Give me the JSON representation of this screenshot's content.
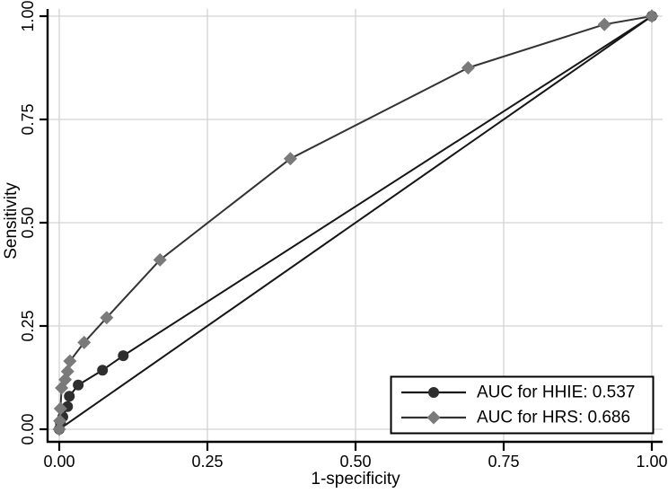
{
  "figure": {
    "background_color": "#ffffff",
    "axis_color": "#000000",
    "grid_color": "#d3d3d3",
    "legend_border_color": "#000000",
    "legend_fill_color": "#ffffff"
  },
  "chart_data": {
    "type": "line",
    "description": "ROC curve comparison",
    "title": "",
    "xlabel": "1-specificity",
    "ylabel": "Sensitivity",
    "xlim": [
      0,
      1
    ],
    "ylim": [
      0,
      1
    ],
    "xtick_values": [
      0,
      0.25,
      0.5,
      0.75,
      1.0
    ],
    "xtick_labels": [
      "0.00",
      "0.25",
      "0.50",
      "0.75",
      "1.00"
    ],
    "ytick_values": [
      0,
      0.25,
      0.5,
      0.75,
      1.0
    ],
    "ytick_labels": [
      "0.00",
      "0.25",
      "0.50",
      "0.75",
      "1.00"
    ],
    "grid": true,
    "legend_position": "bottom-right",
    "series": [
      {
        "name": "AUC for HHIE: 0.537",
        "auc": 0.537,
        "marker": "circle",
        "marker_color": "#2e2e2e",
        "line_color": "#161616",
        "points": [
          [
            0,
            0
          ],
          [
            0.002,
            0.015
          ],
          [
            0.006,
            0.03
          ],
          [
            0.014,
            0.055
          ],
          [
            0.017,
            0.08
          ],
          [
            0.032,
            0.107
          ],
          [
            0.073,
            0.143
          ],
          [
            0.108,
            0.178
          ],
          [
            1,
            1
          ]
        ]
      },
      {
        "name": "AUC for HRS: 0.686",
        "auc": 0.686,
        "marker": "diamond",
        "marker_color": "#7a7a7a",
        "line_color": "#333333",
        "points": [
          [
            0,
            0
          ],
          [
            0.001,
            0.02
          ],
          [
            0.002,
            0.05
          ],
          [
            0.004,
            0.1
          ],
          [
            0.01,
            0.12
          ],
          [
            0.014,
            0.14
          ],
          [
            0.018,
            0.165
          ],
          [
            0.042,
            0.21
          ],
          [
            0.08,
            0.27
          ],
          [
            0.17,
            0.41
          ],
          [
            0.39,
            0.655
          ],
          [
            0.69,
            0.875
          ],
          [
            0.92,
            0.98
          ],
          [
            1,
            1
          ]
        ]
      }
    ],
    "reference_line": {
      "from": [
        0,
        0
      ],
      "to": [
        1,
        1
      ],
      "color": "#161616"
    }
  }
}
